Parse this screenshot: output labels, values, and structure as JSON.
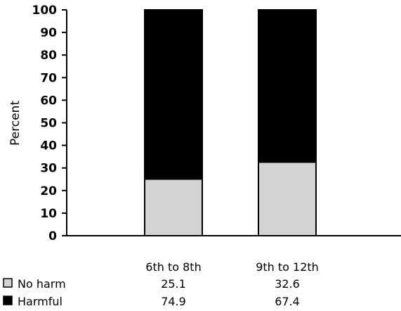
{
  "chart_data": {
    "type": "bar",
    "stacked": true,
    "categories": [
      "6th to 8th",
      "9th to 12th"
    ],
    "series": [
      {
        "name": "No harm",
        "values": [
          25.1,
          32.6
        ],
        "color": "#d3d3d3"
      },
      {
        "name": "Harmful",
        "values": [
          74.9,
          67.4
        ],
        "color": "#000000"
      }
    ],
    "ylabel": "Percent",
    "xlabel": "",
    "title": "",
    "ylim": [
      0,
      100
    ],
    "yticks": [
      "0",
      "10",
      "20",
      "30",
      "40",
      "50",
      "60",
      "70",
      "80",
      "90",
      "100"
    ],
    "grid": false,
    "legend": "bottom-left data table"
  }
}
